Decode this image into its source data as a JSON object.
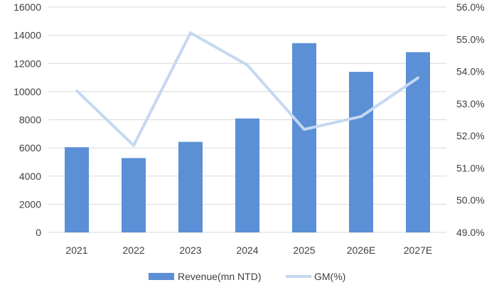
{
  "chart_data": {
    "type": "bar",
    "categories": [
      "2021",
      "2022",
      "2023",
      "2024",
      "2025",
      "2026E",
      "2027E"
    ],
    "series": [
      {
        "name": "Revenue(mn NTD)",
        "type": "bar",
        "axis": "left",
        "color": "#5B8FD6",
        "values": [
          6050,
          5280,
          6430,
          8090,
          13440,
          11400,
          12800
        ]
      },
      {
        "name": "GM(%)",
        "type": "line",
        "axis": "right",
        "color": "#C5D8F0",
        "values": [
          53.4,
          51.7,
          55.2,
          54.2,
          52.2,
          52.6,
          53.8
        ]
      }
    ],
    "ylim_left": [
      0,
      16000
    ],
    "yticks_left": [
      0,
      2000,
      4000,
      6000,
      8000,
      10000,
      12000,
      14000,
      16000
    ],
    "ylim_right": [
      49.0,
      56.0
    ],
    "yticks_right": [
      "49.0%",
      "50.0%",
      "51.0%",
      "52.0%",
      "53.0%",
      "54.0%",
      "55.0%",
      "56.0%"
    ],
    "grid": true,
    "legend_position": "bottom"
  }
}
